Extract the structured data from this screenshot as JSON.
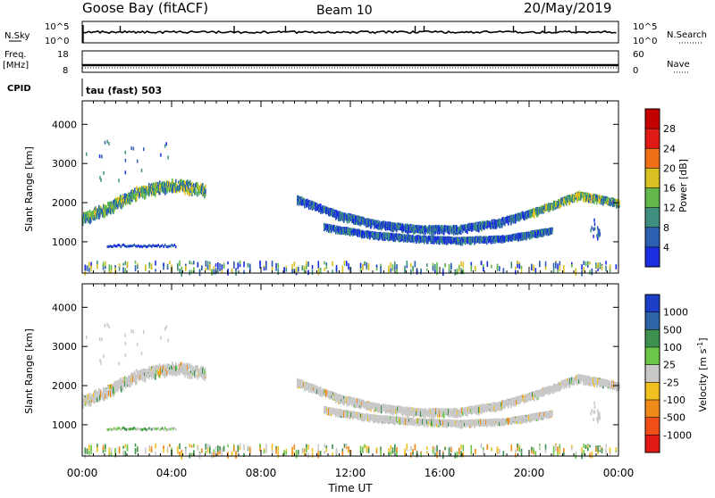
{
  "header": {
    "station": "Goose Bay (fitACF)",
    "beam": "Beam 10",
    "date": "20/May/2019"
  },
  "top_panels": {
    "nsky_label": "N.Sky",
    "nsky_ticks": [
      "10^5",
      "10^0"
    ],
    "nsearch_label": "N.Search",
    "nsearch_ticks": [
      "10^5",
      "10^0"
    ],
    "freq_label_1": "Freq.",
    "freq_label_2": "[MHz]",
    "freq_ticks": [
      "18",
      "8"
    ],
    "nave_label": "Nave",
    "nave_ticks": [
      "60",
      "0"
    ],
    "cpid_label": "CPID",
    "cpid_value": "tau (fast) 503"
  },
  "chart_data": {
    "type": "heatmap",
    "x_ticks": [
      "00:00",
      "04:00",
      "08:00",
      "12:00",
      "16:00",
      "20:00",
      "00:00"
    ],
    "x_hours": [
      0,
      4,
      8,
      12,
      16,
      20,
      24
    ],
    "xlabel": "Time UT",
    "xlim": [
      0,
      24
    ],
    "ylabel": "Slant Range [km]",
    "ylim": [
      200,
      4600
    ],
    "y_ticks": [
      1000,
      2000,
      3000,
      4000
    ],
    "power": {
      "colorbar_label": "Power [dB]",
      "colorbar_ticks": [
        "4",
        "8",
        "12",
        "16",
        "20",
        "24",
        "28"
      ],
      "colors": [
        "#1a2ee0",
        "#2d5fb0",
        "#3f8f80",
        "#62b84a",
        "#d8c020",
        "#f07018",
        "#e01a14",
        "#c40000"
      ]
    },
    "velocity": {
      "colorbar_label": "Velocity [m s^-1]",
      "colorbar_ticks": [
        "1000",
        "500",
        "100",
        "25",
        "-25",
        "-100",
        "-500",
        "-1000"
      ],
      "colors": [
        "#1d3fc8",
        "#2e63a8",
        "#3e9050",
        "#6cc64a",
        "#c8c8c8",
        "#f0c020",
        "#f08a18",
        "#f05018",
        "#e01a14"
      ]
    },
    "echo_bands": [
      {
        "name": "morning band",
        "start_h": 0.0,
        "end_h": 5.5,
        "range_km": [
          1650,
          1900,
          2250,
          2450,
          2500,
          2350
        ]
      },
      {
        "name": "evening band",
        "start_h": 9.6,
        "end_h": 24.0,
        "range_km": [
          2150,
          1750,
          1500,
          1380,
          1380,
          1550,
          1850,
          2250,
          2050
        ]
      },
      {
        "name": "lower trace",
        "start_h": 10.8,
        "end_h": 21.0,
        "range_km": [
          1450,
          1250,
          1150,
          1100,
          1150,
          1350
        ]
      },
      {
        "name": "ground scatter",
        "start_h": 0.1,
        "end_h": 23.9,
        "range_km": [
          400,
          400
        ]
      }
    ]
  }
}
